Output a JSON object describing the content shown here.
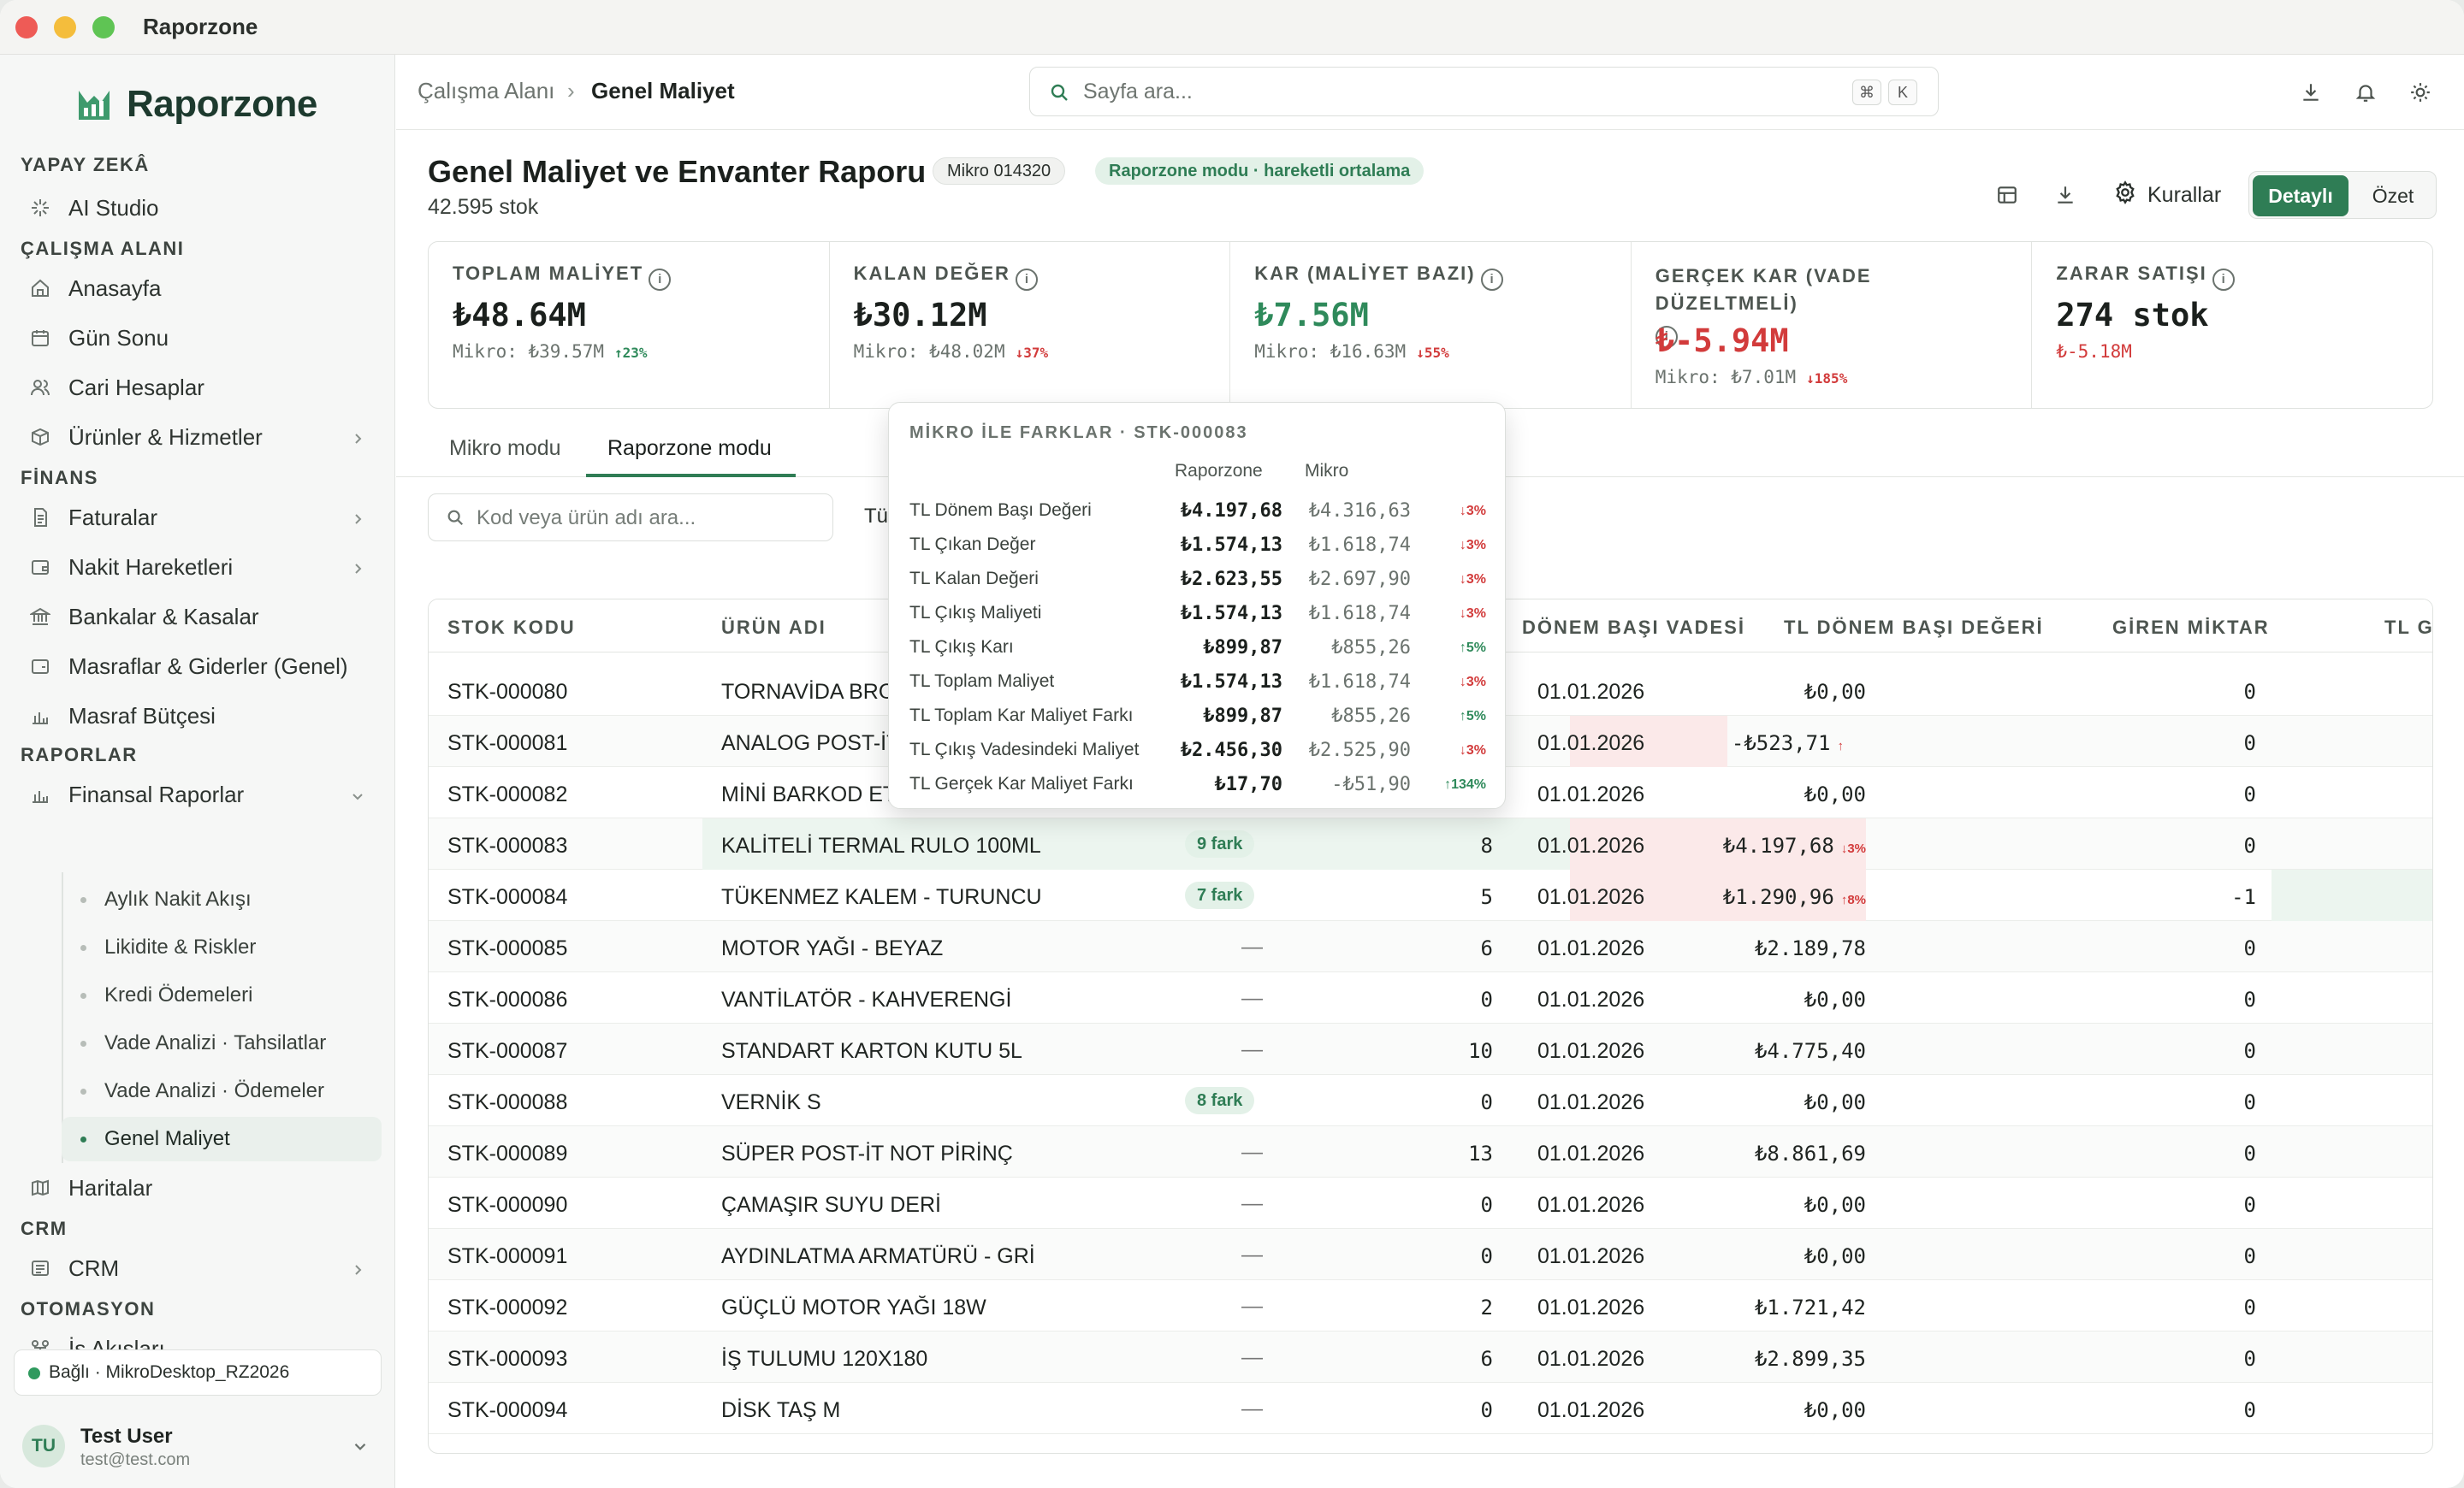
{
  "window": {
    "title": "Raporzone"
  },
  "app": {
    "logo_text": "Raporzone"
  },
  "sidebar": {
    "sections": {
      "ai": "YAPAY ZEKÂ",
      "workspace": "ÇALIŞMA ALANI",
      "finance": "FİNANS",
      "reports": "RAPORLAR",
      "crm": "CRM",
      "automation": "OTOMASYON"
    },
    "items": {
      "ai_studio": "AI Studio",
      "home": "Anasayfa",
      "day_end": "Gün Sonu",
      "accounts": "Cari Hesaplar",
      "products": "Ürünler & Hizmetler",
      "invoices": "Faturalar",
      "cash_moves": "Nakit Hareketleri",
      "banks": "Bankalar & Kasalar",
      "expenses": "Masraflar & Giderler (Genel)",
      "budget": "Masraf Bütçesi",
      "financial_reports": "Finansal Raporlar",
      "maps": "Haritalar",
      "crm": "CRM",
      "workflows": "İş Akışları"
    },
    "report_subitems": [
      "Aylık Nakit Akışı",
      "Likidite & Riskler",
      "Kredi Ödemeleri",
      "Vade Analizi · Tahsilatlar",
      "Vade Analizi · Ödemeler",
      "Genel Maliyet"
    ],
    "connection": "Bağlı · MikroDesktop_RZ2026",
    "user": {
      "initials": "TU",
      "name": "Test User",
      "email": "test@test.com"
    }
  },
  "header": {
    "breadcrumb": [
      "Çalışma Alanı",
      "Genel Maliyet"
    ],
    "breadcrumb_sep": "›",
    "search_placeholder": "Sayfa ara...",
    "shortcut_keys": [
      "⌘",
      "K"
    ]
  },
  "report": {
    "title": "Genel Maliyet ve Envanter Raporu",
    "source_pill": "Mikro 014320",
    "mode_pill": "Raporzone modu · hareketli ortalama",
    "subtitle": "42.595 stok",
    "rules_label": "Kurallar",
    "view_detailed": "Detaylı",
    "view_summary": "Özet"
  },
  "kpis": [
    {
      "label": "TOPLAM MALİYET",
      "value": "₺48.64M",
      "foot": "Mikro: ₺39.57M",
      "change": "↑23%",
      "dir": "up",
      "value_color": "#1b201d"
    },
    {
      "label": "KALAN DEĞER",
      "value": "₺30.12M",
      "foot": "Mikro: ₺48.02M",
      "change": "↓37%",
      "dir": "down",
      "value_color": "#1b201d"
    },
    {
      "label": "KAR (MALİYET BAZI)",
      "value": "₺7.56M",
      "foot": "Mikro: ₺16.63M",
      "change": "↓55%",
      "dir": "down",
      "value_color": "#2f8a5b"
    },
    {
      "label": "GERÇEK KAR (VADE DÜZELTMELİ)",
      "value": "₺-5.94M",
      "foot": "Mikro: ₺7.01M",
      "change": "↓185%",
      "dir": "down",
      "value_color": "#d23b3b"
    },
    {
      "label": "ZARAR SATIŞI",
      "value": "274 stok",
      "foot": "₺-5.18M",
      "change": "",
      "dir": "",
      "value_color": "#1b201d"
    }
  ],
  "tabs": [
    "Mikro modu",
    "Raporzone modu"
  ],
  "filter": {
    "placeholder": "Kod veya ürün adı ara...",
    "trailing_text": "Tü"
  },
  "table": {
    "columns": [
      "STOK KODU",
      "ÜRÜN ADI",
      "DÖNEM BAŞI VADESİ",
      "TL DÖNEM BAŞI DEĞERİ",
      "GİREN MİKTAR",
      "TL Gİ"
    ],
    "rows": [
      {
        "code": "STK-000080",
        "name": "TORNAVİDA BRO",
        "badge": "",
        "qty": "",
        "date": "01.01.2026",
        "value": "₺0,00",
        "value_flag": "",
        "in_qty": "0"
      },
      {
        "code": "STK-000081",
        "name": "ANALOG POST-İT",
        "badge": "",
        "qty": "",
        "date": "01.01.2026",
        "value": "-₺523,71",
        "value_flag": "↑",
        "in_qty": "0"
      },
      {
        "code": "STK-000082",
        "name": "MİNİ BARKOD ET",
        "badge": "",
        "qty": "",
        "date": "01.01.2026",
        "value": "₺0,00",
        "value_flag": "",
        "in_qty": "0"
      },
      {
        "code": "STK-000083",
        "name": "KALİTELİ TERMAL RULO 100ML",
        "badge": "9 fark",
        "qty": "8",
        "date": "01.01.2026",
        "value": "₺4.197,68",
        "value_flag": "↓3%",
        "in_qty": "0"
      },
      {
        "code": "STK-000084",
        "name": "TÜKENMEZ KALEM - TURUNCU",
        "badge": "7 fark",
        "qty": "5",
        "date": "01.01.2026",
        "value": "₺1.290,96",
        "value_flag": "↑8%",
        "in_qty": "-1"
      },
      {
        "code": "STK-000085",
        "name": "MOTOR YAĞI - BEYAZ",
        "badge": "",
        "qty": "6",
        "date": "01.01.2026",
        "value": "₺2.189,78",
        "value_flag": "",
        "in_qty": "0"
      },
      {
        "code": "STK-000086",
        "name": "VANTİLATÖR - KAHVERENGİ",
        "badge": "",
        "qty": "0",
        "date": "01.01.2026",
        "value": "₺0,00",
        "value_flag": "",
        "in_qty": "0"
      },
      {
        "code": "STK-000087",
        "name": "STANDART KARTON KUTU 5L",
        "badge": "",
        "qty": "10",
        "date": "01.01.2026",
        "value": "₺4.775,40",
        "value_flag": "",
        "in_qty": "0"
      },
      {
        "code": "STK-000088",
        "name": "VERNİK S",
        "badge": "8 fark",
        "qty": "0",
        "date": "01.01.2026",
        "value": "₺0,00",
        "value_flag": "",
        "in_qty": "0"
      },
      {
        "code": "STK-000089",
        "name": "SÜPER POST-İT NOT PİRİNÇ",
        "badge": "",
        "qty": "13",
        "date": "01.01.2026",
        "value": "₺8.861,69",
        "value_flag": "",
        "in_qty": "0"
      },
      {
        "code": "STK-000090",
        "name": "ÇAMAŞIR SUYU DERİ",
        "badge": "",
        "qty": "0",
        "date": "01.01.2026",
        "value": "₺0,00",
        "value_flag": "",
        "in_qty": "0"
      },
      {
        "code": "STK-000091",
        "name": "AYDINLATMA ARMATÜRÜ - GRİ",
        "badge": "",
        "qty": "0",
        "date": "01.01.2026",
        "value": "₺0,00",
        "value_flag": "",
        "in_qty": "0"
      },
      {
        "code": "STK-000092",
        "name": "GÜÇLÜ MOTOR YAĞI 18W",
        "badge": "",
        "qty": "2",
        "date": "01.01.2026",
        "value": "₺1.721,42",
        "value_flag": "",
        "in_qty": "0"
      },
      {
        "code": "STK-000093",
        "name": "İŞ TULUMU 120X180",
        "badge": "",
        "qty": "6",
        "date": "01.01.2026",
        "value": "₺2.899,35",
        "value_flag": "",
        "in_qty": "0"
      },
      {
        "code": "STK-000094",
        "name": "DİSK TAŞ M",
        "badge": "",
        "qty": "0",
        "date": "01.01.2026",
        "value": "₺0,00",
        "value_flag": "",
        "in_qty": "0"
      }
    ],
    "empty_dash": "—"
  },
  "tooltip": {
    "title": "MİKRO İLE FARKLAR · STK-000083",
    "col_a": "Raporzone",
    "col_b": "Mikro",
    "rows": [
      {
        "label": "TL Dönem Başı Değeri",
        "a": "₺4.197,68",
        "b": "₺4.316,63",
        "c": "↓3%",
        "dir": "down"
      },
      {
        "label": "TL Çıkan Değer",
        "a": "₺1.574,13",
        "b": "₺1.618,74",
        "c": "↓3%",
        "dir": "down"
      },
      {
        "label": "TL Kalan Değeri",
        "a": "₺2.623,55",
        "b": "₺2.697,90",
        "c": "↓3%",
        "dir": "down"
      },
      {
        "label": "TL Çıkış Maliyeti",
        "a": "₺1.574,13",
        "b": "₺1.618,74",
        "c": "↓3%",
        "dir": "down"
      },
      {
        "label": "TL Çıkış Karı",
        "a": "₺899,87",
        "b": "₺855,26",
        "c": "↑5%",
        "dir": "up"
      },
      {
        "label": "TL Toplam Maliyet",
        "a": "₺1.574,13",
        "b": "₺1.618,74",
        "c": "↓3%",
        "dir": "down"
      },
      {
        "label": "TL Toplam Kar Maliyet Farkı",
        "a": "₺899,87",
        "b": "₺855,26",
        "c": "↑5%",
        "dir": "up"
      },
      {
        "label": "TL Çıkış Vadesindeki Maliyet",
        "a": "₺2.456,30",
        "b": "₺2.525,90",
        "c": "↓3%",
        "dir": "down"
      },
      {
        "label": "TL Gerçek Kar Maliyet Farkı",
        "a": "₺17,70",
        "b": "-₺51,90",
        "c": "↑134%",
        "dir": "up"
      }
    ]
  },
  "colors": {
    "accent": "#2f7d55",
    "up": "#2f8a5b",
    "down": "#d23b3b"
  }
}
